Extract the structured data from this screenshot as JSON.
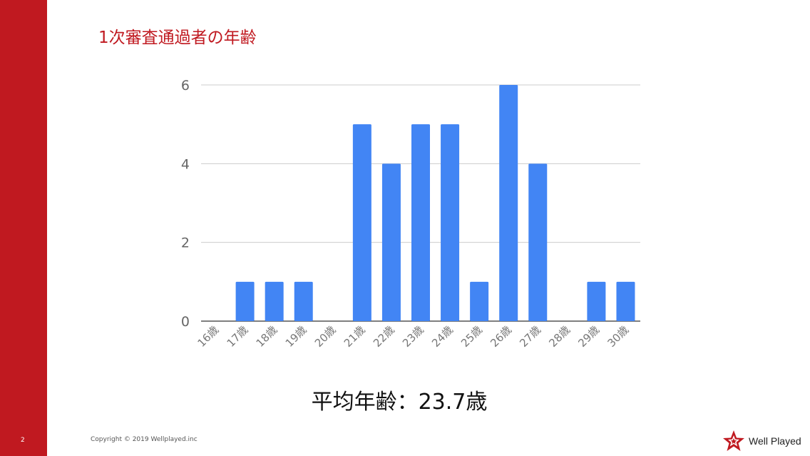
{
  "slide": {
    "title": "1次審査通過者の年齢",
    "summary": "平均年齢：23.7歳",
    "page_number": "2",
    "copyright": "Copyright © 2019 Wellplayed.inc",
    "brand_name": "Well Played",
    "accent_color": "#c01920"
  },
  "chart_data": {
    "type": "bar",
    "title": "",
    "xlabel": "",
    "ylabel": "",
    "categories": [
      "16歳",
      "17歳",
      "18歳",
      "19歳",
      "20歳",
      "21歳",
      "22歳",
      "23歳",
      "24歳",
      "25歳",
      "26歳",
      "27歳",
      "28歳",
      "29歳",
      "30歳"
    ],
    "values": [
      0,
      1,
      1,
      1,
      0,
      5,
      4,
      5,
      5,
      1,
      6,
      4,
      0,
      1,
      1
    ],
    "ylim": [
      0,
      6
    ],
    "yticks": [
      0,
      2,
      4,
      6
    ],
    "grid": true,
    "bar_color": "#4285f4",
    "legend": "none"
  }
}
